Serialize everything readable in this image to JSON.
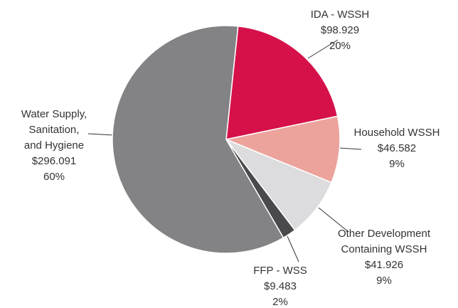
{
  "chart_data": {
    "type": "pie",
    "categories": [
      "IDA - WSSH",
      "Household WSSH",
      "Other Development Containing WSSH",
      "FFP - WSS",
      "Water Supply, Sanitation, and Hygiene"
    ],
    "values": [
      98.929,
      46.582,
      41.926,
      9.483,
      296.091
    ],
    "value_labels": [
      "$98.929",
      "$46.582",
      "$41.926",
      "$9.483",
      "$296.091"
    ],
    "percentages": [
      20,
      9,
      9,
      2,
      60
    ],
    "percentage_labels": [
      "20%",
      "9%",
      "9%",
      "2%",
      "60%"
    ],
    "colors": [
      "#d6114a",
      "#eca39c",
      "#dcdcde",
      "#4a4a4c",
      "#838386"
    ]
  }
}
